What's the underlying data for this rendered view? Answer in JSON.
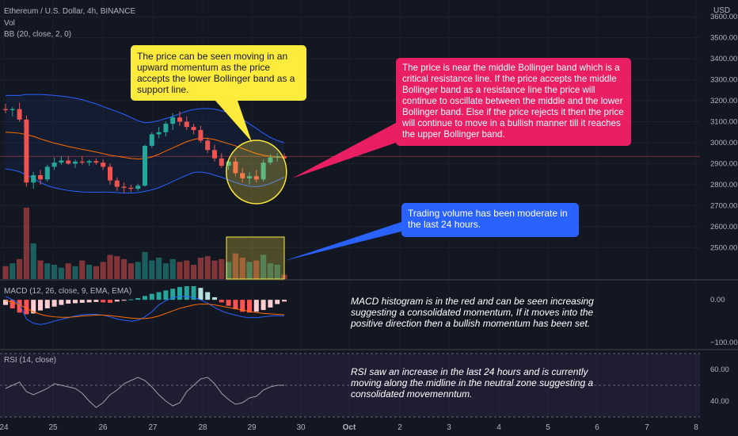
{
  "legend": {
    "symbol": "Ethereum / U.S. Dollar, 4h, BINANCE",
    "vol": "Vol",
    "bb": "BB (20, close, 2, 0)",
    "macd": "MACD (12, 26, close, 9, EMA, EMA)",
    "rsi": "RSI (14, close)"
  },
  "currency": "USD",
  "colors": {
    "background": "#131722",
    "up": "#26a69a",
    "down": "#ef5350",
    "bb_bands": "#2962ff",
    "bb_basis": "#ff6d00",
    "yellow_box": "#ffeb3b",
    "pink_box": "#e91e63",
    "blue_box": "#2962ff",
    "macd_line": "#2962ff",
    "signal_line": "#ff6d00",
    "rsi_line": "#9e9ea6"
  },
  "annotations": {
    "yellow": "The price can be seen moving in an upward momentum as the price accepts the lower Bollinger band as a support line.",
    "pink": "The price is near the middle Bollinger band which is a critical resistance line. If the price accepts the middle Bollinger band as a resistance line the price will continue to oscillate between the middle and the lower Bollinger band. Else if the price rejects it then the price will continue to move in a bullish manner till it reaches the upper Bollinger band.",
    "blue": "Trading volume has been moderate in the last 24 hours.",
    "macd_note": "MACD histogram is in the red and can be seen increasing suggesting a consolidated momentum, If it moves into the positive direction then a bullish momentum has been set.",
    "rsi_note": "RSI saw an increase in the last 24 hours and is currently moving along the midline in the neutral zone suggesting a consolidated movemenntum."
  },
  "chart_data": [
    {
      "type": "candlestick",
      "title": "Ethereum / U.S. Dollar, 4h, BINANCE",
      "x_ticks": [
        "24",
        "25",
        "26",
        "27",
        "28",
        "29",
        "30",
        "Oct",
        "2",
        "3",
        "4",
        "5",
        "6",
        "7",
        "8"
      ],
      "ylim": [
        2350,
        3680
      ],
      "y_ticks": [
        2500,
        2600,
        2700,
        2800,
        2900,
        3000,
        3100,
        3200,
        3300,
        3400,
        3500,
        3600
      ],
      "current_price_line": 2935,
      "candles": [
        {
          "o": 3160,
          "h": 3185,
          "l": 3140,
          "c": 3155
        },
        {
          "o": 3155,
          "h": 3170,
          "l": 3125,
          "c": 3160
        },
        {
          "o": 3160,
          "h": 3190,
          "l": 3100,
          "c": 3110
        },
        {
          "o": 3110,
          "h": 3130,
          "l": 2790,
          "c": 2810
        },
        {
          "o": 2810,
          "h": 2860,
          "l": 2780,
          "c": 2845
        },
        {
          "o": 2845,
          "h": 2870,
          "l": 2800,
          "c": 2825
        },
        {
          "o": 2825,
          "h": 2895,
          "l": 2815,
          "c": 2885
        },
        {
          "o": 2885,
          "h": 2930,
          "l": 2870,
          "c": 2905
        },
        {
          "o": 2905,
          "h": 2935,
          "l": 2895,
          "c": 2915
        },
        {
          "o": 2915,
          "h": 2935,
          "l": 2895,
          "c": 2900
        },
        {
          "o": 2900,
          "h": 2920,
          "l": 2880,
          "c": 2910
        },
        {
          "o": 2910,
          "h": 2935,
          "l": 2895,
          "c": 2905
        },
        {
          "o": 2905,
          "h": 2920,
          "l": 2890,
          "c": 2912
        },
        {
          "o": 2912,
          "h": 2925,
          "l": 2895,
          "c": 2905
        },
        {
          "o": 2905,
          "h": 2920,
          "l": 2870,
          "c": 2885
        },
        {
          "o": 2885,
          "h": 2900,
          "l": 2800,
          "c": 2820
        },
        {
          "o": 2820,
          "h": 2835,
          "l": 2770,
          "c": 2790
        },
        {
          "o": 2790,
          "h": 2810,
          "l": 2760,
          "c": 2785
        },
        {
          "o": 2785,
          "h": 2800,
          "l": 2765,
          "c": 2780
        },
        {
          "o": 2780,
          "h": 2805,
          "l": 2770,
          "c": 2795
        },
        {
          "o": 2795,
          "h": 2990,
          "l": 2790,
          "c": 2985
        },
        {
          "o": 2985,
          "h": 3050,
          "l": 2975,
          "c": 3040
        },
        {
          "o": 3040,
          "h": 3075,
          "l": 3020,
          "c": 3050
        },
        {
          "o": 3050,
          "h": 3100,
          "l": 3030,
          "c": 3090
        },
        {
          "o": 3090,
          "h": 3140,
          "l": 3060,
          "c": 3120
        },
        {
          "o": 3120,
          "h": 3150,
          "l": 3080,
          "c": 3100
        },
        {
          "o": 3100,
          "h": 3125,
          "l": 3060,
          "c": 3075
        },
        {
          "o": 3075,
          "h": 3090,
          "l": 3040,
          "c": 3060
        },
        {
          "o": 3060,
          "h": 3080,
          "l": 3000,
          "c": 3010
        },
        {
          "o": 3010,
          "h": 3025,
          "l": 2950,
          "c": 2965
        },
        {
          "o": 2965,
          "h": 2990,
          "l": 2910,
          "c": 2925
        },
        {
          "o": 2925,
          "h": 2950,
          "l": 2880,
          "c": 2890
        },
        {
          "o": 2890,
          "h": 2920,
          "l": 2870,
          "c": 2910
        },
        {
          "o": 2910,
          "h": 2930,
          "l": 2840,
          "c": 2855
        },
        {
          "o": 2855,
          "h": 2880,
          "l": 2810,
          "c": 2830
        },
        {
          "o": 2830,
          "h": 2860,
          "l": 2800,
          "c": 2840
        },
        {
          "o": 2840,
          "h": 2870,
          "l": 2810,
          "c": 2825
        },
        {
          "o": 2825,
          "h": 2920,
          "l": 2815,
          "c": 2905
        },
        {
          "o": 2905,
          "h": 2945,
          "l": 2895,
          "c": 2930
        },
        {
          "o": 2930,
          "h": 2950,
          "l": 2910,
          "c": 2935
        },
        {
          "o": 2935,
          "h": 2950,
          "l": 2915,
          "c": 2925
        }
      ],
      "volume": [
        18,
        22,
        28,
        100,
        50,
        26,
        22,
        20,
        16,
        22,
        18,
        26,
        20,
        18,
        24,
        34,
        32,
        28,
        22,
        24,
        38,
        26,
        30,
        22,
        28,
        24,
        26,
        20,
        30,
        32,
        26,
        28,
        24,
        36,
        30,
        24,
        26,
        34,
        22,
        20,
        6
      ],
      "bb_upper": [
        3225,
        3225,
        3225,
        3230,
        3230,
        3230,
        3228,
        3225,
        3222,
        3218,
        3212,
        3205,
        3195,
        3185,
        3172,
        3160,
        3148,
        3135,
        3120,
        3105,
        3095,
        3098,
        3105,
        3115,
        3125,
        3138,
        3150,
        3158,
        3162,
        3163,
        3160,
        3152,
        3143,
        3130,
        3112,
        3090,
        3068,
        3045,
        3025,
        3010,
        3000
      ],
      "bb_basis": [
        3050,
        3048,
        3045,
        3038,
        3030,
        3018,
        3008,
        2998,
        2990,
        2982,
        2975,
        2968,
        2962,
        2955,
        2948,
        2940,
        2935,
        2930,
        2925,
        2922,
        2925,
        2932,
        2945,
        2960,
        2975,
        2990,
        3005,
        3015,
        3022,
        3020,
        3015,
        3005,
        2995,
        2985,
        2972,
        2960,
        2948,
        2940,
        2935,
        2930,
        2930
      ],
      "bb_lower": [
        2875,
        2870,
        2862,
        2845,
        2830,
        2810,
        2795,
        2785,
        2778,
        2772,
        2768,
        2765,
        2764,
        2764,
        2764,
        2764,
        2762,
        2760,
        2760,
        2762,
        2768,
        2775,
        2785,
        2800,
        2815,
        2830,
        2845,
        2858,
        2860,
        2855,
        2845,
        2835,
        2822,
        2810,
        2800,
        2792,
        2790,
        2795,
        2805,
        2820,
        2835
      ]
    },
    {
      "type": "macd",
      "ylim": [
        -115,
        45
      ],
      "y_ticks": [
        0,
        -100
      ],
      "y_tick_labels": [
        "0.00",
        "−100.00"
      ],
      "histogram": [
        -12,
        -20,
        -30,
        -34,
        -32,
        -25,
        -20,
        -16,
        -12,
        -9,
        -8,
        -7,
        -6,
        -5,
        -6,
        -7,
        -4,
        -2,
        1,
        4,
        9,
        14,
        18,
        22,
        26,
        30,
        32,
        32,
        28,
        18,
        6,
        -6,
        -14,
        -22,
        -28,
        -30,
        -28,
        -24,
        -18,
        -10,
        -4
      ],
      "macd": [
        8,
        0,
        -10,
        -45,
        -55,
        -58,
        -55,
        -50,
        -46,
        -42,
        -38,
        -35,
        -34,
        -34,
        -36,
        -40,
        -45,
        -48,
        -50,
        -48,
        -40,
        -28,
        -12,
        -2,
        5,
        8,
        8,
        5,
        0,
        -8,
        -18,
        -26,
        -32,
        -36,
        -40,
        -42,
        -42,
        -40,
        -38,
        -37,
        -38
      ],
      "signal": [
        -2,
        -6,
        -12,
        -20,
        -28,
        -34,
        -38,
        -40,
        -41,
        -41,
        -40,
        -38,
        -37,
        -36,
        -36,
        -37,
        -39,
        -41,
        -43,
        -44,
        -44,
        -42,
        -38,
        -32,
        -26,
        -20,
        -16,
        -12,
        -10,
        -10,
        -12,
        -15,
        -18,
        -21,
        -24,
        -27,
        -30,
        -32,
        -33,
        -34,
        -35
      ]
    },
    {
      "type": "line",
      "title": "RSI (14, close)",
      "ylim": [
        28,
        72
      ],
      "y_ticks": [
        60,
        40
      ],
      "y_tick_labels": [
        "60.00",
        "40.00"
      ],
      "bands": [
        70,
        30
      ],
      "midline": 50,
      "values": [
        48,
        50,
        52,
        46,
        44,
        46,
        48,
        51,
        50,
        49,
        48,
        45,
        40,
        36,
        39,
        44,
        47,
        51,
        53,
        55,
        53,
        49,
        44,
        40,
        37,
        39,
        46,
        50,
        54,
        55,
        51,
        45,
        41,
        38,
        39,
        42,
        43,
        47,
        49,
        50,
        50
      ]
    }
  ]
}
